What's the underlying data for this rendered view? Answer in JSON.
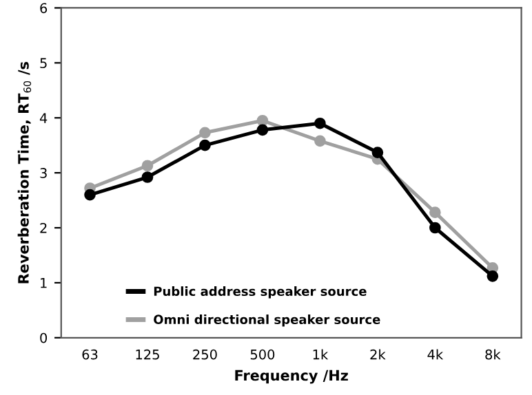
{
  "chart_data": {
    "type": "line",
    "xlabel": "Frequency /Hz",
    "ylabel": "Reverberation Time, RT$_{60}$ /s",
    "categories": [
      "63",
      "125",
      "250",
      "500",
      "1k",
      "2k",
      "4k",
      "8k"
    ],
    "series": [
      {
        "name": "Public address speaker source",
        "color": "#000000",
        "values": [
          2.6,
          2.92,
          3.5,
          3.78,
          3.9,
          3.37,
          2.0,
          1.12
        ]
      },
      {
        "name": "Omni directional speaker source",
        "color": "#a0a0a0",
        "values": [
          2.72,
          3.13,
          3.73,
          3.95,
          3.58,
          3.25,
          2.28,
          1.27
        ]
      }
    ],
    "ylim": [
      0,
      6
    ],
    "yticks": [
      0,
      1,
      2,
      3,
      4,
      5,
      6
    ],
    "grid": false,
    "legend": "bottom",
    "marker": "circle",
    "line_style": "solid"
  }
}
